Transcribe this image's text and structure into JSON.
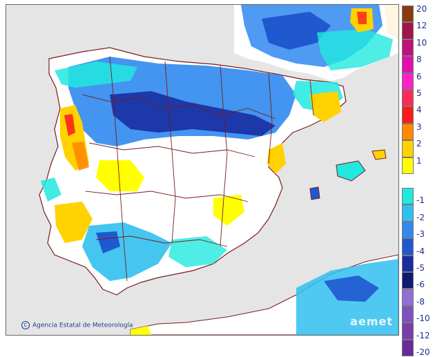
{
  "map": {
    "title": "",
    "credit": "Agencia Estatal de Meteorología",
    "logo_text": "aemet",
    "colors": {
      "sea": "#e5e5e5",
      "land_neutral": "#ffffff",
      "border": "#7a1a1a"
    }
  },
  "legend": {
    "positive": [
      {
        "label": "20",
        "color": "#8b3a0f"
      },
      {
        "label": "12",
        "color": "#a0154a"
      },
      {
        "label": "10",
        "color": "#c0107a"
      },
      {
        "label": "8",
        "color": "#e010b0"
      },
      {
        "label": "6",
        "color": "#ff20c8"
      },
      {
        "label": "5",
        "color": "#ff2a5a"
      },
      {
        "label": "4",
        "color": "#ff1a1a"
      },
      {
        "label": "3",
        "color": "#ff8a00"
      },
      {
        "label": "2",
        "color": "#ffd200"
      },
      {
        "label": "1",
        "color": "#ffff00"
      }
    ],
    "negative": [
      {
        "label": "-1",
        "color": "#22e8e0"
      },
      {
        "label": "-2",
        "color": "#30c0f0"
      },
      {
        "label": "-3",
        "color": "#3088f0"
      },
      {
        "label": "-4",
        "color": "#2058d0"
      },
      {
        "label": "-5",
        "color": "#1a2ea0"
      },
      {
        "label": "-6",
        "color": "#101a70"
      },
      {
        "label": "-8",
        "color": "#9070d0"
      },
      {
        "label": "-10",
        "color": "#8050c0"
      },
      {
        "label": "-12",
        "color": "#7a3eaa"
      },
      {
        "label": "-20",
        "color": "#6a2a98"
      }
    ]
  }
}
